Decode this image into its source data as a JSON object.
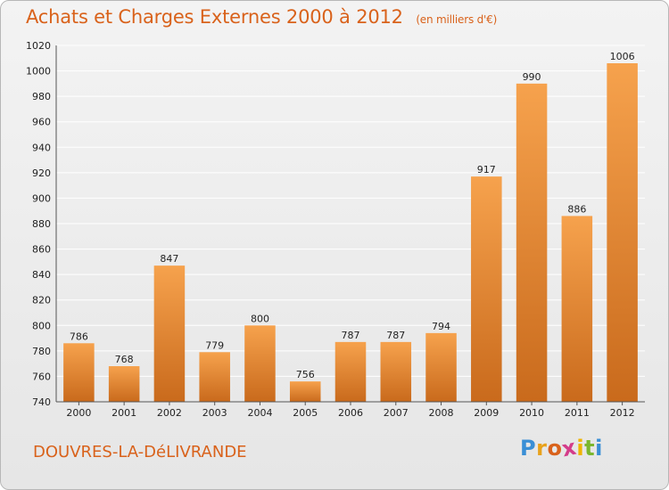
{
  "header": {
    "title": "Achats et Charges Externes 2000 à 2012",
    "subtitle": "(en milliers d'€)"
  },
  "footer": {
    "city": "DOUVRES-LA-DéLIVRANDE",
    "logo": {
      "text": "Proxiti",
      "letters": [
        {
          "ch": "P",
          "color": "#3a8fd6"
        },
        {
          "ch": "r",
          "color": "#e8a21b"
        },
        {
          "ch": "o",
          "color": "#d9621b"
        },
        {
          "ch": "x",
          "color": "#d43c8a"
        },
        {
          "ch": "i",
          "color": "#f0b400"
        },
        {
          "ch": "t",
          "color": "#7bb72e"
        },
        {
          "ch": "i",
          "color": "#3a8fd6"
        }
      ]
    }
  },
  "colors": {
    "accent": "#d9621b",
    "bar_top": "#f6a24d",
    "bar_bottom": "#c96a1c",
    "grid": "#ffffff"
  },
  "chart_data": {
    "type": "bar",
    "title": "Achats et Charges Externes 2000 à 2012",
    "subtitle": "(en milliers d'€)",
    "xlabel": "",
    "ylabel": "",
    "categories": [
      "2000",
      "2001",
      "2002",
      "2003",
      "2004",
      "2005",
      "2006",
      "2007",
      "2008",
      "2009",
      "2010",
      "2011",
      "2012"
    ],
    "values": [
      786,
      768,
      847,
      779,
      800,
      756,
      787,
      787,
      794,
      917,
      990,
      886,
      1006
    ],
    "ylim": [
      740,
      1020
    ],
    "yticks": [
      740,
      760,
      780,
      800,
      820,
      840,
      860,
      880,
      900,
      920,
      940,
      960,
      980,
      1000,
      1020
    ],
    "grid": true,
    "legend": "none"
  }
}
